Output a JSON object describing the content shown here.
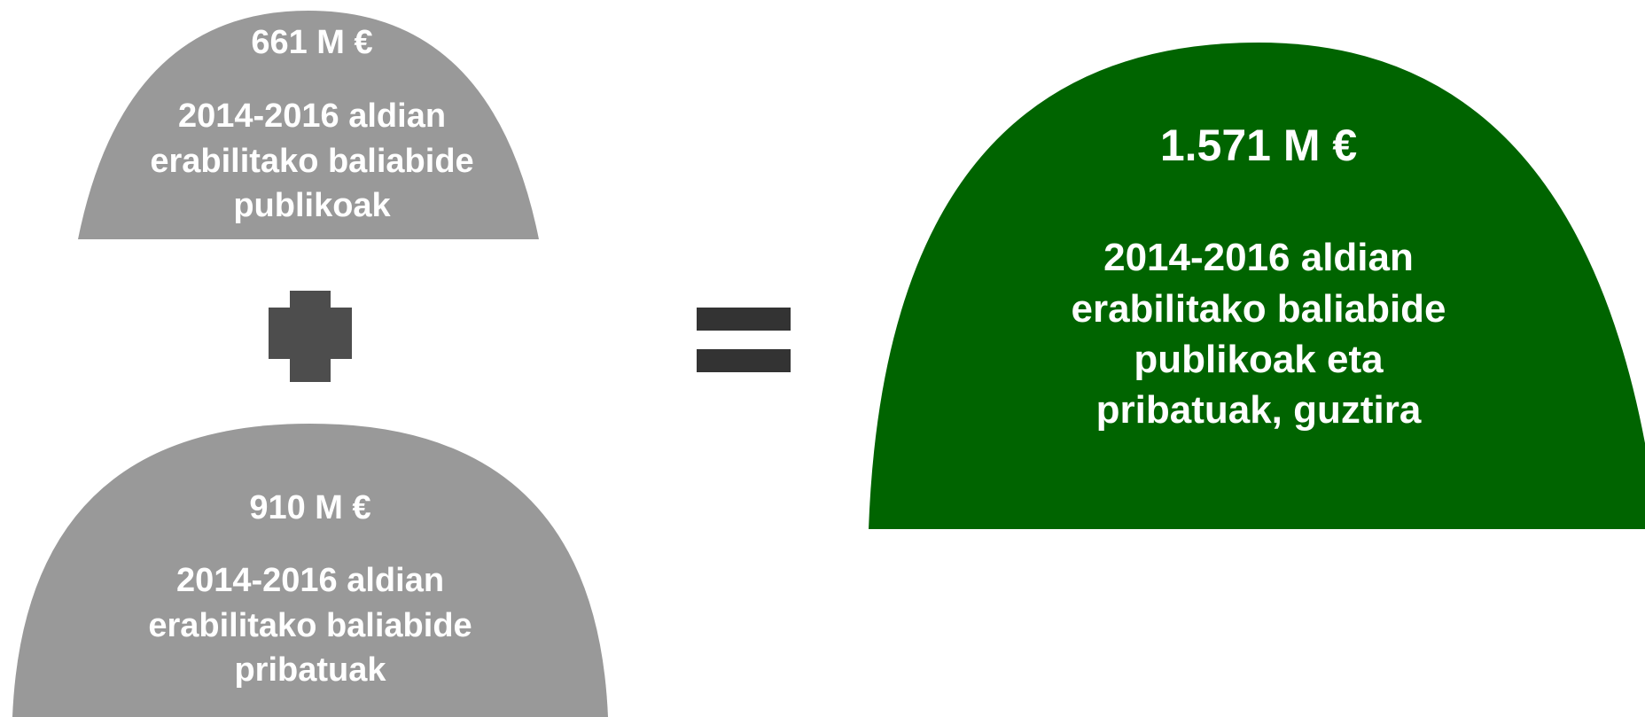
{
  "colors": {
    "background": "#ffffff",
    "public_dome": "#999999",
    "private_dome": "#999999",
    "total_dome": "#006400",
    "operator": "#4d4d4d",
    "equals": "#333333",
    "text": "#ffffff"
  },
  "public_resources": {
    "amount": "661 M €",
    "description": [
      "2014-2016 aldian",
      "erabilitako baliabide",
      "publikoak"
    ]
  },
  "plus_operator": {
    "icon": "plus-icon"
  },
  "private_resources": {
    "amount": "910 M €",
    "description": [
      "2014-2016 aldian",
      "erabilitako baliabide",
      "pribatuak"
    ]
  },
  "equals_operator": {
    "icon": "equals-icon"
  },
  "total_resources": {
    "amount": "1.571 M €",
    "description": [
      "2014-2016 aldian",
      "erabilitako baliabide",
      "publikoak eta",
      "pribatuak, guztira"
    ]
  }
}
